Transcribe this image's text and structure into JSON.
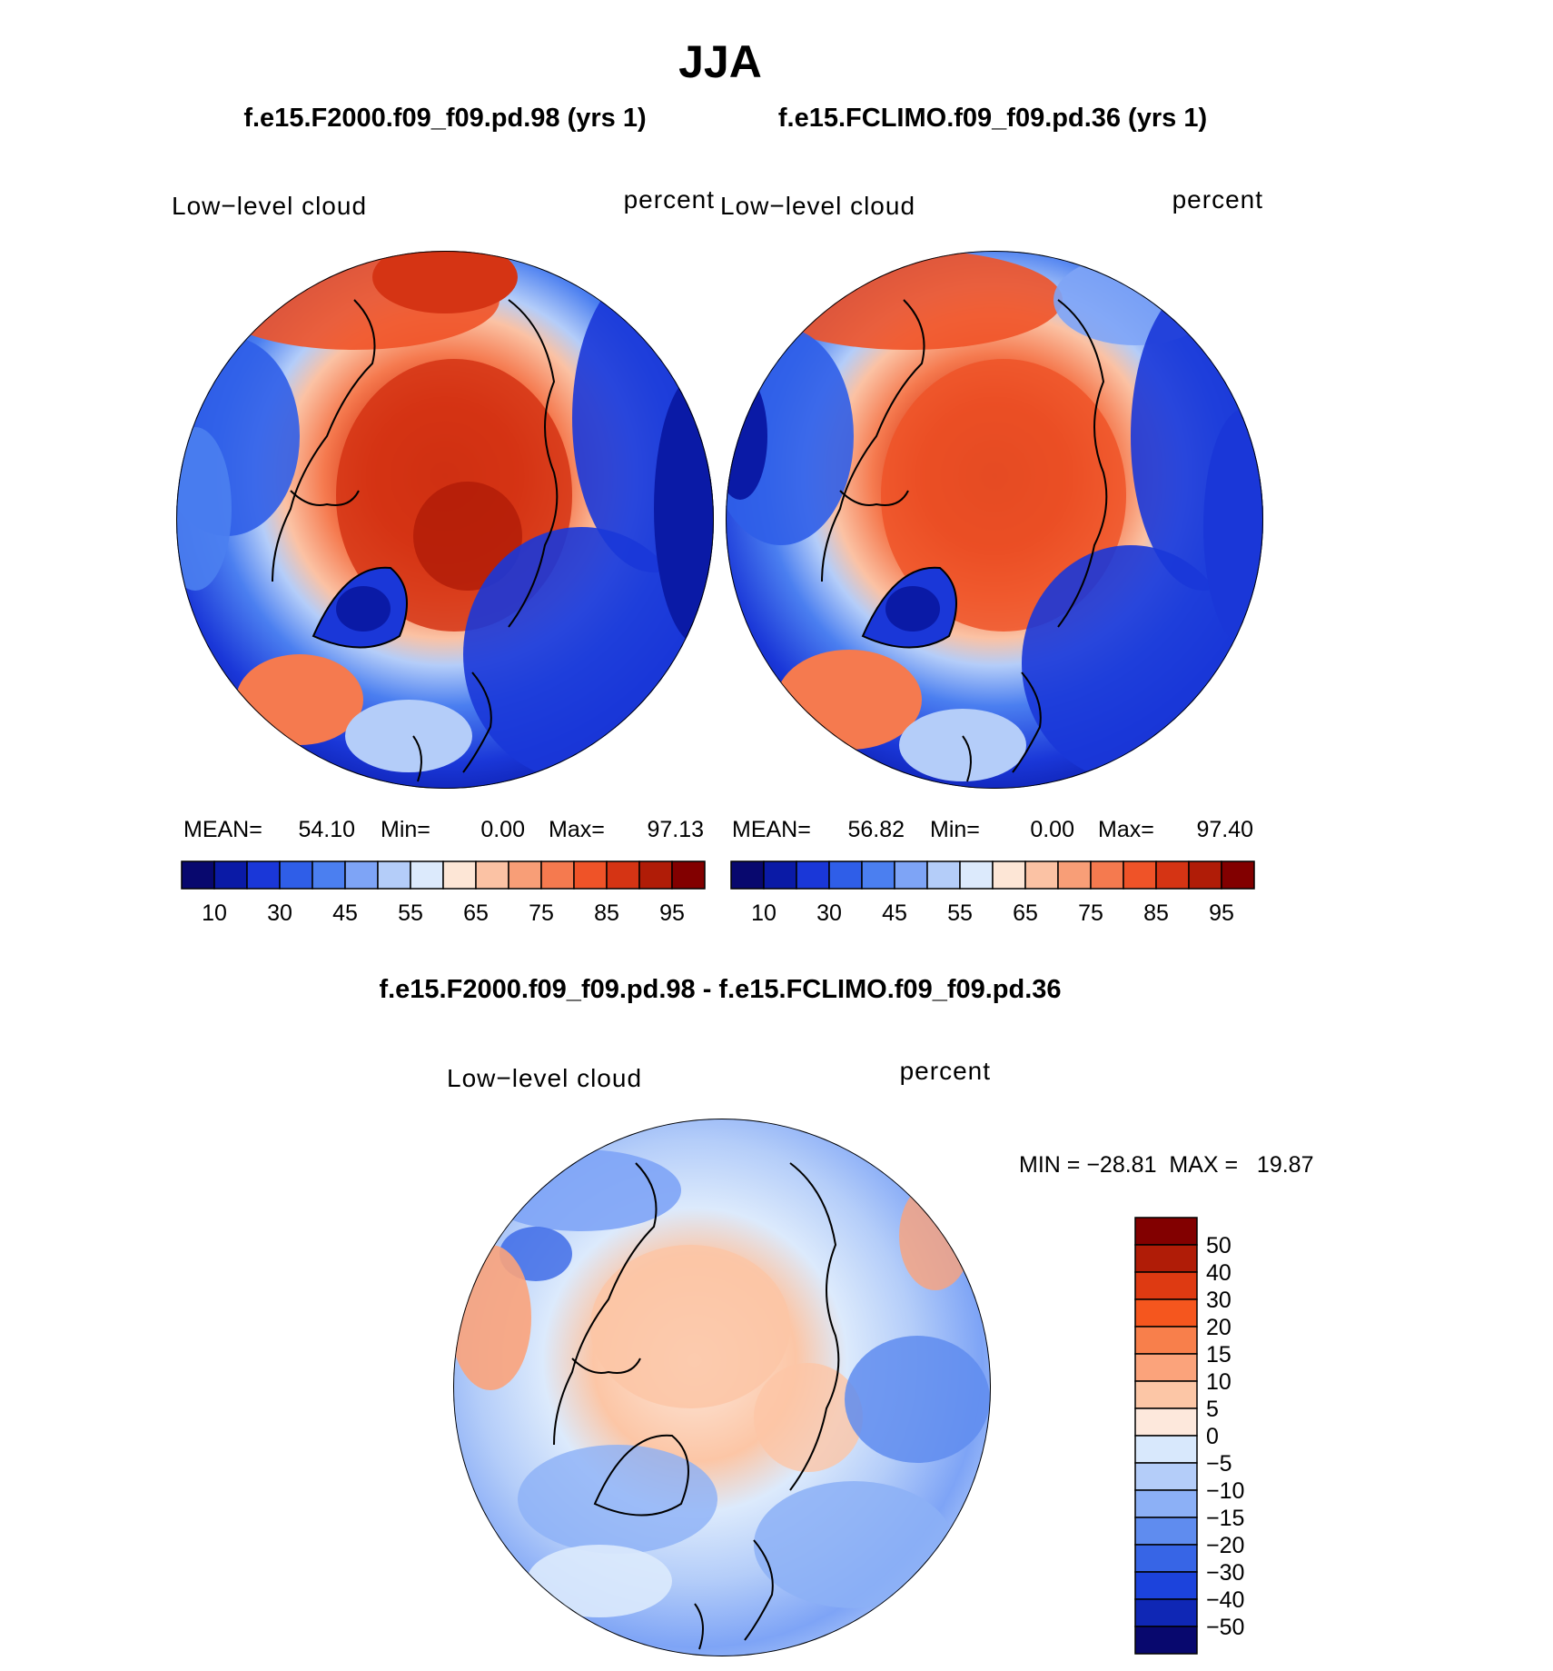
{
  "title": "JJA",
  "panels": [
    {
      "case": "f.e15.F2000.f09_f09.pd.98 (yrs 1)",
      "variable": "Low−level cloud",
      "units": "percent",
      "stats": {
        "mean_label": "MEAN=",
        "mean": "54.10",
        "min_label": "Min=",
        "min": "0.00",
        "max_label": "Max=",
        "max": "97.13"
      }
    },
    {
      "case": "f.e15.FCLIMO.f09_f09.pd.36 (yrs 1)",
      "variable": "Low−level cloud",
      "units": "percent",
      "stats": {
        "mean_label": "MEAN=",
        "mean": "56.82",
        "min_label": "Min=",
        "min": "0.00",
        "max_label": "Max=",
        "max": "97.40"
      }
    }
  ],
  "difference": {
    "case": "f.e15.F2000.f09_f09.pd.98 - f.e15.FCLIMO.f09_f09.pd.36",
    "variable": "Low−level cloud",
    "units": "percent",
    "stats_text": "MIN = −28.81  MAX =   19.87"
  },
  "colorbar_abs": {
    "colors": [
      "#08086e",
      "#0a1aa6",
      "#1a37d8",
      "#2f5ee8",
      "#4b7ff0",
      "#7ea4f6",
      "#b4cdf9",
      "#dceafc",
      "#fde6d6",
      "#fbc2a4",
      "#f89e77",
      "#f57a4f",
      "#ef5328",
      "#d53414",
      "#b01c07",
      "#820000"
    ],
    "labels": [
      "10",
      "30",
      "45",
      "55",
      "65",
      "75",
      "85",
      "95"
    ]
  },
  "colorbar_diff": {
    "colors": [
      "#820000",
      "#b01c07",
      "#de3a12",
      "#f5561e",
      "#f87f4b",
      "#fba37b",
      "#fcc6a6",
      "#fde8dc",
      "#d8e8fc",
      "#b4cdf9",
      "#8cb0f6",
      "#5f8cef",
      "#3765e6",
      "#1c43dc",
      "#0f27b5",
      "#08086e"
    ],
    "labels": [
      "50",
      "40",
      "30",
      "20",
      "15",
      "10",
      "5",
      "0",
      "−5",
      "−10",
      "−15",
      "−20",
      "−30",
      "−40",
      "−50"
    ]
  },
  "colors": {
    "land_outline": "#000000",
    "ocean_blue": "#2f5ee8",
    "arctic_red": "#d53414"
  }
}
